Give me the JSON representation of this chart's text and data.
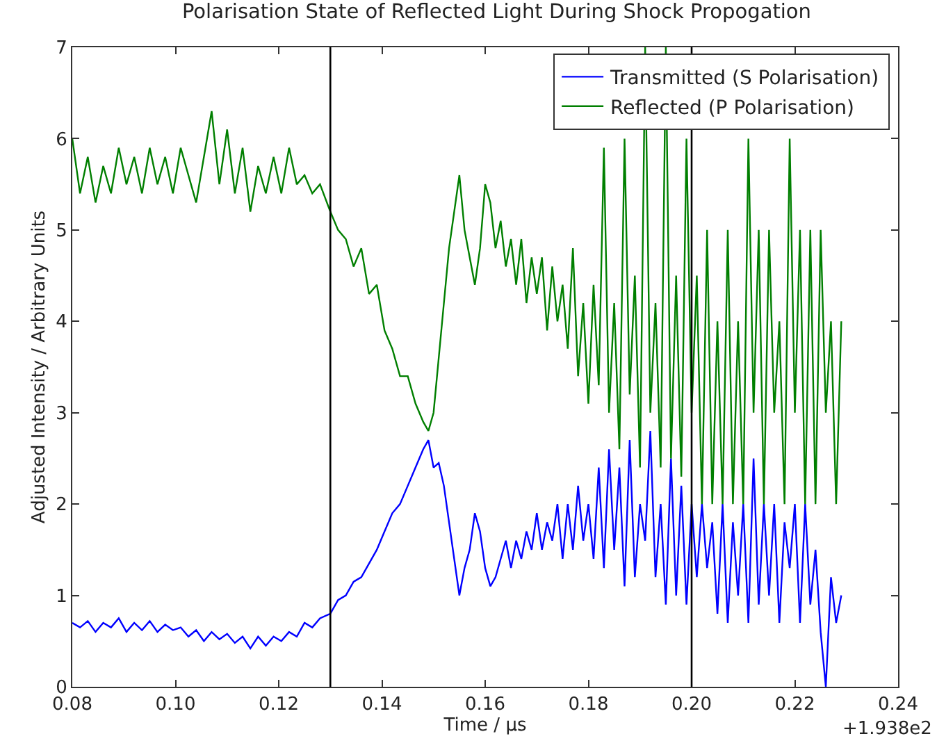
{
  "chart_data": {
    "type": "line",
    "title": "Polarisation State of Reflected Light During Shock Propogation",
    "xlabel": "Time / µs",
    "ylabel": "Adjusted Intensity / Arbitrary Units",
    "xlim": [
      0.08,
      0.24
    ],
    "xticks": [
      0.08,
      {
        "value": 0.1,
        "label": "0.10"
      },
      0.12,
      0.14,
      0.16,
      0.18,
      {
        "value": 0.2,
        "label": "0.20"
      },
      0.22,
      0.24
    ],
    "ylim": [
      0,
      7
    ],
    "yticks": [
      0,
      1,
      2,
      3,
      4,
      5,
      6,
      7
    ],
    "grid": false,
    "legend": "top right",
    "marker": "none",
    "line_style": "solid",
    "annotations": [
      "+1.938e2"
    ],
    "ref_lines": [
      {
        "axis": "x",
        "value": 0.13,
        "color": "#000000"
      },
      {
        "axis": "x",
        "value": 0.2,
        "color": "#000000"
      }
    ],
    "series": [
      {
        "name": "Transmitted (S Polarisation)",
        "color": "#0000ff",
        "x": [
          0.08,
          0.0815,
          0.083,
          0.0845,
          0.086,
          0.0875,
          0.089,
          0.0905,
          0.092,
          0.0935,
          0.095,
          0.0965,
          0.098,
          0.0995,
          0.101,
          0.1025,
          0.104,
          0.1055,
          0.107,
          0.1085,
          0.11,
          0.1115,
          0.113,
          0.1145,
          0.116,
          0.1175,
          0.119,
          0.1205,
          0.122,
          0.1235,
          0.125,
          0.1265,
          0.128,
          0.13,
          0.1315,
          0.133,
          0.1345,
          0.136,
          0.1375,
          0.139,
          0.1405,
          0.142,
          0.1435,
          0.145,
          0.1465,
          0.148,
          0.149,
          0.15,
          0.151,
          0.152,
          0.153,
          0.154,
          0.155,
          0.156,
          0.157,
          0.158,
          0.159,
          0.16,
          0.161,
          0.162,
          0.163,
          0.164,
          0.165,
          0.166,
          0.167,
          0.168,
          0.169,
          0.17,
          0.171,
          0.172,
          0.173,
          0.174,
          0.175,
          0.176,
          0.177,
          0.178,
          0.179,
          0.18,
          0.181,
          0.182,
          0.183,
          0.184,
          0.185,
          0.186,
          0.187,
          0.188,
          0.189,
          0.19,
          0.191,
          0.192,
          0.193,
          0.194,
          0.195,
          0.196,
          0.197,
          0.198,
          0.199,
          0.2,
          0.201,
          0.202,
          0.203,
          0.204,
          0.205,
          0.206,
          0.207,
          0.208,
          0.209,
          0.21,
          0.211,
          0.212,
          0.213,
          0.214,
          0.215,
          0.216,
          0.217,
          0.218,
          0.219,
          0.22,
          0.221,
          0.222,
          0.223,
          0.224,
          0.225,
          0.226,
          0.227,
          0.228,
          0.229
        ],
        "values": [
          0.7,
          0.65,
          0.72,
          0.6,
          0.7,
          0.65,
          0.75,
          0.6,
          0.7,
          0.62,
          0.72,
          0.6,
          0.68,
          0.62,
          0.65,
          0.55,
          0.62,
          0.5,
          0.6,
          0.52,
          0.58,
          0.48,
          0.55,
          0.42,
          0.55,
          0.45,
          0.55,
          0.5,
          0.6,
          0.55,
          0.7,
          0.65,
          0.75,
          0.8,
          0.95,
          1.0,
          1.15,
          1.2,
          1.35,
          1.5,
          1.7,
          1.9,
          2.0,
          2.2,
          2.4,
          2.6,
          2.7,
          2.4,
          2.45,
          2.2,
          1.8,
          1.4,
          1.0,
          1.3,
          1.5,
          1.9,
          1.7,
          1.3,
          1.1,
          1.2,
          1.4,
          1.6,
          1.3,
          1.6,
          1.4,
          1.7,
          1.5,
          1.9,
          1.5,
          1.8,
          1.6,
          2.0,
          1.4,
          2.0,
          1.5,
          2.2,
          1.6,
          2.0,
          1.4,
          2.4,
          1.3,
          2.6,
          1.5,
          2.4,
          1.1,
          2.7,
          1.2,
          2.0,
          1.6,
          2.8,
          1.2,
          2.0,
          0.9,
          2.5,
          1.0,
          2.2,
          0.9,
          2.0,
          1.2,
          2.0,
          1.3,
          1.8,
          0.8,
          2.0,
          0.7,
          1.8,
          1.0,
          2.0,
          0.7,
          2.5,
          0.9,
          2.0,
          1.0,
          2.0,
          0.7,
          1.8,
          1.3,
          2.0,
          0.7,
          2.0,
          0.9,
          1.5,
          0.6,
          0.0,
          1.2,
          0.7,
          1.0
        ]
      },
      {
        "name": "Reflected (P Polarisation)",
        "color": "#007f00",
        "x": [
          0.08,
          0.0815,
          0.083,
          0.0845,
          0.086,
          0.0875,
          0.089,
          0.0905,
          0.092,
          0.0935,
          0.095,
          0.0965,
          0.098,
          0.0995,
          0.101,
          0.1025,
          0.104,
          0.1055,
          0.107,
          0.1085,
          0.11,
          0.1115,
          0.113,
          0.1145,
          0.116,
          0.1175,
          0.119,
          0.1205,
          0.122,
          0.1235,
          0.125,
          0.1265,
          0.128,
          0.13,
          0.1315,
          0.133,
          0.1345,
          0.136,
          0.1375,
          0.139,
          0.1405,
          0.142,
          0.1435,
          0.145,
          0.1465,
          0.148,
          0.149,
          0.15,
          0.151,
          0.152,
          0.153,
          0.154,
          0.155,
          0.156,
          0.157,
          0.158,
          0.159,
          0.16,
          0.161,
          0.162,
          0.163,
          0.164,
          0.165,
          0.166,
          0.167,
          0.168,
          0.169,
          0.17,
          0.171,
          0.172,
          0.173,
          0.174,
          0.175,
          0.176,
          0.177,
          0.178,
          0.179,
          0.18,
          0.181,
          0.182,
          0.183,
          0.184,
          0.185,
          0.186,
          0.187,
          0.188,
          0.189,
          0.19,
          0.191,
          0.192,
          0.193,
          0.194,
          0.195,
          0.196,
          0.197,
          0.198,
          0.199,
          0.2,
          0.201,
          0.202,
          0.203,
          0.204,
          0.205,
          0.206,
          0.207,
          0.208,
          0.209,
          0.21,
          0.211,
          0.212,
          0.213,
          0.214,
          0.215,
          0.216,
          0.217,
          0.218,
          0.219,
          0.22,
          0.221,
          0.222,
          0.223,
          0.224,
          0.225,
          0.226,
          0.227,
          0.228,
          0.229
        ],
        "values": [
          6.0,
          5.4,
          5.8,
          5.3,
          5.7,
          5.4,
          5.9,
          5.5,
          5.8,
          5.4,
          5.9,
          5.5,
          5.8,
          5.4,
          5.9,
          5.6,
          5.3,
          5.8,
          6.3,
          5.5,
          6.1,
          5.4,
          5.9,
          5.2,
          5.7,
          5.4,
          5.8,
          5.4,
          5.9,
          5.5,
          5.6,
          5.4,
          5.5,
          5.2,
          5.0,
          4.9,
          4.6,
          4.8,
          4.3,
          4.4,
          3.9,
          3.7,
          3.4,
          3.4,
          3.1,
          2.9,
          2.8,
          3.0,
          3.6,
          4.2,
          4.8,
          5.2,
          5.6,
          5.0,
          4.7,
          4.4,
          4.8,
          5.5,
          5.3,
          4.8,
          5.1,
          4.6,
          4.9,
          4.4,
          4.9,
          4.2,
          4.7,
          4.3,
          4.7,
          3.9,
          4.6,
          4.0,
          4.4,
          3.7,
          4.8,
          3.4,
          4.2,
          3.1,
          4.4,
          3.3,
          5.9,
          3.0,
          4.2,
          2.6,
          6.0,
          3.2,
          4.5,
          2.4,
          7.0,
          3.0,
          4.2,
          2.4,
          7.0,
          2.5,
          4.5,
          2.3,
          6.0,
          3.0,
          4.5,
          2.0,
          5.0,
          2.0,
          4.0,
          2.0,
          5.0,
          2.0,
          4.0,
          2.0,
          6.0,
          3.0,
          5.0,
          2.0,
          5.0,
          3.0,
          4.0,
          2.0,
          6.0,
          3.0,
          5.0,
          2.0,
          5.0,
          2.0,
          5.0,
          3.0,
          4.0,
          2.0,
          4.0
        ]
      }
    ]
  }
}
